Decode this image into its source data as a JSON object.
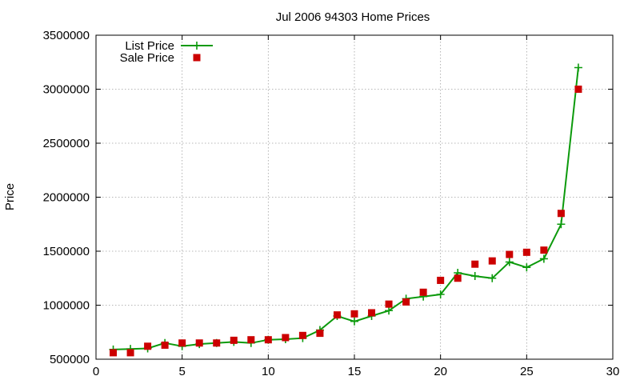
{
  "chart_data": {
    "type": "line",
    "title": "Jul 2006 94303 Home Prices",
    "xlabel": "",
    "ylabel": "Price",
    "xlim": [
      0,
      30
    ],
    "ylim": [
      500000,
      3500000
    ],
    "xticks": [
      0,
      5,
      10,
      15,
      20,
      25,
      30
    ],
    "yticks": [
      500000,
      1000000,
      1500000,
      2000000,
      2500000,
      3000000,
      3500000
    ],
    "grid": true,
    "legend_position": "top-left",
    "series": [
      {
        "name": "List Price",
        "style": "line-plus",
        "color": "#0c9a0c",
        "x": [
          1,
          2,
          3,
          4,
          5,
          6,
          7,
          8,
          9,
          10,
          11,
          12,
          13,
          14,
          15,
          16,
          17,
          18,
          19,
          20,
          21,
          22,
          23,
          24,
          25,
          26,
          27,
          28
        ],
        "y": [
          590000,
          595000,
          600000,
          650000,
          620000,
          640000,
          650000,
          660000,
          650000,
          680000,
          685000,
          695000,
          770000,
          900000,
          850000,
          900000,
          950000,
          1060000,
          1080000,
          1100000,
          1300000,
          1270000,
          1250000,
          1400000,
          1350000,
          1430000,
          1750000,
          3200000
        ]
      },
      {
        "name": "Sale Price",
        "style": "square",
        "color": "#cc0000",
        "x": [
          1,
          2,
          3,
          4,
          5,
          6,
          7,
          8,
          9,
          10,
          11,
          12,
          13,
          14,
          15,
          16,
          17,
          18,
          19,
          20,
          21,
          22,
          23,
          24,
          25,
          26,
          27,
          28
        ],
        "y": [
          560000,
          560000,
          620000,
          630000,
          650000,
          650000,
          650000,
          675000,
          680000,
          680000,
          700000,
          720000,
          740000,
          910000,
          920000,
          930000,
          1010000,
          1030000,
          1120000,
          1230000,
          1250000,
          1380000,
          1410000,
          1470000,
          1490000,
          1510000,
          1850000,
          3000000
        ]
      }
    ]
  }
}
